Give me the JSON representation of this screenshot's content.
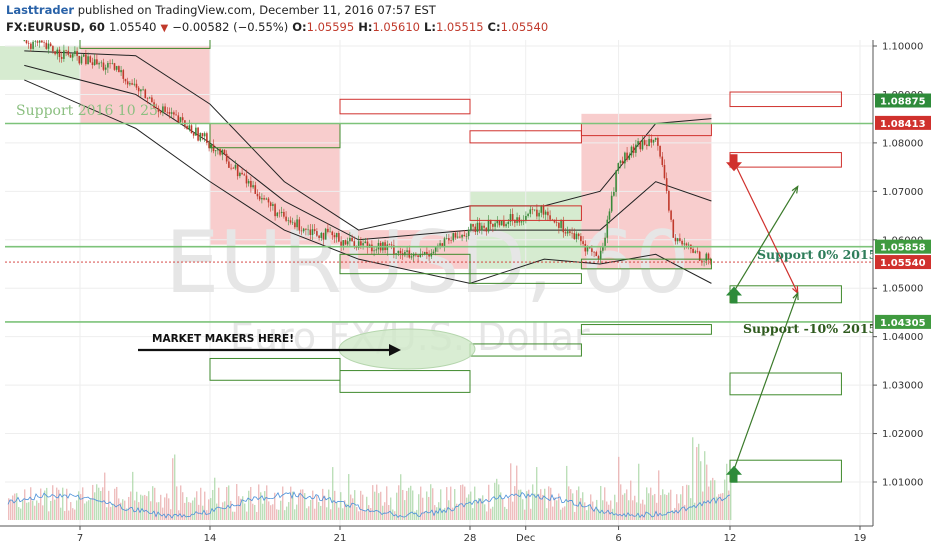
{
  "header": {
    "author": "Lasttrader",
    "published": "published on TradingView.com, December 11, 2016 07:57 EST",
    "symbol": "FX:EURUSD, 60",
    "last": "1.05540",
    "change": "−0.00582 (−0.55%)",
    "open_label": "O:",
    "open": "1.05595",
    "high_label": "H:",
    "high": "1.05610",
    "low_label": "L:",
    "low": "1.05515",
    "close_label": "C:",
    "close": "1.05540"
  },
  "watermark": {
    "symbol": "EURUSD, 60",
    "name": "Euro FX/U.S. Dollar"
  },
  "annotations": {
    "support_2016": "Support 2016 10 25",
    "support_0": "Support  0% 2015",
    "support_10": "Support  -10% 2015",
    "market_makers": "MARKET MAKERS HERE!"
  },
  "colors": {
    "up": "#4caf50",
    "down": "#e05a5a",
    "green_zone": "#7dc37a",
    "red_zone": "#f29b9b",
    "bands": "#222222",
    "volume_avg": "#4a90d9"
  },
  "chart_data": {
    "type": "candlestick",
    "y_axis": {
      "min": 1.0,
      "max": 1.1,
      "ticks": [
        "1.10000",
        "1.09000",
        "1.08000",
        "1.07000",
        "1.06000",
        "1.05000",
        "1.04000",
        "1.03000",
        "1.02000",
        "1.01000"
      ]
    },
    "x_axis": {
      "ticks": [
        "7",
        "14",
        "21",
        "28",
        "Dec",
        "6",
        "12",
        "19"
      ]
    },
    "price_tags": [
      {
        "label": "1.08875",
        "value": 1.08875,
        "color": "#2e8b3a"
      },
      {
        "label": "1.08413",
        "value": 1.08413,
        "color": "#d0312d"
      },
      {
        "label": "1.05858",
        "value": 1.05858,
        "color": "#3f9a3f"
      },
      {
        "label": "1.05540",
        "value": 1.0554,
        "color": "#d0312d"
      },
      {
        "label": "1.04305",
        "value": 1.04305,
        "color": "#3f9a3f"
      }
    ],
    "price_path": [
      {
        "x": "Nov 4",
        "y": 1.101
      },
      {
        "x": "Nov 9",
        "y": 1.095
      },
      {
        "x": "Nov 11",
        "y": 1.088
      },
      {
        "x": "Nov 14",
        "y": 1.08
      },
      {
        "x": "Nov 16",
        "y": 1.072
      },
      {
        "x": "Nov 18",
        "y": 1.064
      },
      {
        "x": "Nov 21",
        "y": 1.06
      },
      {
        "x": "Nov 24",
        "y": 1.058
      },
      {
        "x": "Nov 25",
        "y": 1.056
      },
      {
        "x": "Nov 28",
        "y": 1.062
      },
      {
        "x": "Nov 30",
        "y": 1.064
      },
      {
        "x": "Dec 2",
        "y": 1.066
      },
      {
        "x": "Dec 5",
        "y": 1.056
      },
      {
        "x": "Dec 6",
        "y": 1.076
      },
      {
        "x": "Dec 8",
        "y": 1.082
      },
      {
        "x": "Dec 9",
        "y": 1.06
      },
      {
        "x": "Dec 11",
        "y": 1.0554
      }
    ],
    "bollinger": {
      "upper": [
        {
          "x": "Nov 4",
          "y": 1.099
        },
        {
          "x": "Nov 10",
          "y": 1.098
        },
        {
          "x": "Nov 14",
          "y": 1.088
        },
        {
          "x": "Nov 18",
          "y": 1.072
        },
        {
          "x": "Nov 22",
          "y": 1.062
        },
        {
          "x": "Nov 28",
          "y": 1.067
        },
        {
          "x": "Dec 2",
          "y": 1.067
        },
        {
          "x": "Dec 5",
          "y": 1.07
        },
        {
          "x": "Dec 8",
          "y": 1.084
        },
        {
          "x": "Dec 11",
          "y": 1.085
        }
      ],
      "middle": [
        {
          "x": "Nov 4",
          "y": 1.096
        },
        {
          "x": "Nov 10",
          "y": 1.09
        },
        {
          "x": "Nov 14",
          "y": 1.08
        },
        {
          "x": "Nov 18",
          "y": 1.068
        },
        {
          "x": "Nov 22",
          "y": 1.06
        },
        {
          "x": "Nov 28",
          "y": 1.062
        },
        {
          "x": "Dec 2",
          "y": 1.062
        },
        {
          "x": "Dec 5",
          "y": 1.062
        },
        {
          "x": "Dec 8",
          "y": 1.072
        },
        {
          "x": "Dec 11",
          "y": 1.068
        }
      ],
      "lower": [
        {
          "x": "Nov 4",
          "y": 1.093
        },
        {
          "x": "Nov 10",
          "y": 1.083
        },
        {
          "x": "Nov 14",
          "y": 1.072
        },
        {
          "x": "Nov 18",
          "y": 1.062
        },
        {
          "x": "Nov 22",
          "y": 1.056
        },
        {
          "x": "Nov 28",
          "y": 1.051
        },
        {
          "x": "Dec 2",
          "y": 1.056
        },
        {
          "x": "Dec 5",
          "y": 1.055
        },
        {
          "x": "Dec 8",
          "y": 1.057
        },
        {
          "x": "Dec 11",
          "y": 1.051
        }
      ]
    },
    "zones": [
      {
        "kind": "red",
        "x0": "Nov 7",
        "x1": "Nov 14",
        "y0": 1.084,
        "y1": 1.1
      },
      {
        "kind": "red",
        "x0": "Nov 14",
        "x1": "Nov 21",
        "y0": 1.059,
        "y1": 1.084
      },
      {
        "kind": "red",
        "x0": "Nov 21",
        "x1": "Nov 28",
        "y0": 1.054,
        "y1": 1.062
      },
      {
        "kind": "green",
        "x0": "Nov 28",
        "x1": "Dec 4",
        "y0": 1.054,
        "y1": 1.07
      },
      {
        "kind": "red",
        "x0": "Dec 4",
        "x1": "Dec 11",
        "y0": 1.054,
        "y1": 1.086
      },
      {
        "kind": "green",
        "x0": "Nov 1",
        "x1": "Nov 7",
        "y0": 1.093,
        "y1": 1.1
      }
    ],
    "boxes": [
      {
        "color": "red",
        "x0": "Nov 21",
        "x1": "Nov 28",
        "y0": 1.086,
        "y1": 1.089
      },
      {
        "color": "red",
        "x0": "Nov 28",
        "x1": "Dec 4",
        "y0": 1.08,
        "y1": 1.0825
      },
      {
        "color": "red",
        "x0": "Dec 4",
        "x1": "Dec 11",
        "y0": 1.0815,
        "y1": 1.084
      },
      {
        "color": "red",
        "x0": "Dec 12",
        "x1": "Dec 18",
        "y0": 1.0875,
        "y1": 1.0905
      },
      {
        "color": "red",
        "x0": "Dec 12",
        "x1": "Dec 18",
        "y0": 1.075,
        "y1": 1.078
      },
      {
        "color": "red",
        "x0": "Nov 28",
        "x1": "Dec 4",
        "y0": 1.064,
        "y1": 1.067
      },
      {
        "color": "green",
        "x0": "Nov 14",
        "x1": "Nov 21",
        "y0": 1.079,
        "y1": 1.084
      },
      {
        "color": "green",
        "x0": "Nov 21",
        "x1": "Nov 28",
        "y0": 1.053,
        "y1": 1.057
      },
      {
        "color": "green",
        "x0": "Nov 28",
        "x1": "Dec 4",
        "y0": 1.051,
        "y1": 1.053
      },
      {
        "color": "green",
        "x0": "Dec 4",
        "x1": "Dec 11",
        "y0": 1.054,
        "y1": 1.056
      },
      {
        "color": "green",
        "x0": "Dec 12",
        "x1": "Dec 18",
        "y0": 1.047,
        "y1": 1.0505
      },
      {
        "color": "green",
        "x0": "Dec 4",
        "x1": "Dec 11",
        "y0": 1.0405,
        "y1": 1.0425
      },
      {
        "color": "green",
        "x0": "Nov 28",
        "x1": "Dec 4",
        "y0": 1.036,
        "y1": 1.0385
      },
      {
        "color": "green",
        "x0": "Nov 14",
        "x1": "Nov 21",
        "y0": 1.031,
        "y1": 1.0355
      },
      {
        "color": "green",
        "x0": "Nov 21",
        "x1": "Nov 28",
        "y0": 1.0285,
        "y1": 1.033
      },
      {
        "color": "green",
        "x0": "Dec 12",
        "x1": "Dec 18",
        "y0": 1.028,
        "y1": 1.0325
      },
      {
        "color": "green",
        "x0": "Dec 12",
        "x1": "Dec 18",
        "y0": 1.01,
        "y1": 1.0145
      },
      {
        "color": "green",
        "x0": "Nov 7",
        "x1": "Nov 14",
        "y0": 1.0995,
        "y1": 1.102
      }
    ],
    "horizontal_lines": [
      {
        "y": 1.05858,
        "color": "#7dc37a"
      },
      {
        "y": 1.04305,
        "color": "#7dc37a"
      },
      {
        "y": 1.0554,
        "color": "#d0312d",
        "dashed": true
      },
      {
        "y": 1.084,
        "color": "#7dc37a"
      }
    ],
    "arrows": [
      {
        "color": "red",
        "from": {
          "x": "Dec 12",
          "y": 1.0765
        },
        "to": {
          "x": "Dec 15",
          "y": 1.049
        }
      },
      {
        "color": "green",
        "from": {
          "x": "Dec 12",
          "y": 1.049
        },
        "to": {
          "x": "Dec 15",
          "y": 1.071
        }
      },
      {
        "color": "green",
        "from": {
          "x": "Dec 12",
          "y": 1.012
        },
        "to": {
          "x": "Dec 15",
          "y": 1.049
        }
      }
    ],
    "marker_arrows": [
      {
        "kind": "down",
        "color": "#d0312d",
        "x": "Dec 12",
        "y": 1.076
      },
      {
        "kind": "up",
        "color": "#2e8b3a",
        "x": "Dec 12",
        "y": 1.0485
      },
      {
        "kind": "up",
        "color": "#2e8b3a",
        "x": "Dec 12",
        "y": 1.0115
      }
    ]
  }
}
